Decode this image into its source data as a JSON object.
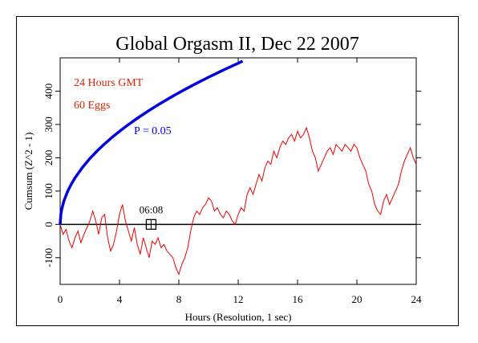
{
  "chart_data": {
    "type": "line",
    "title": "Global Orgasm II, Dec 22 2007",
    "xlabel": "Hours (Resolution, 1 sec)",
    "ylabel": "Cumsum (Z^2 - 1)",
    "xlim": [
      0,
      24
    ],
    "ylim": [
      -180,
      500
    ],
    "x_ticks": [
      "0",
      "4",
      "8",
      "12",
      "16",
      "20",
      "24"
    ],
    "y_ticks": [
      "-100",
      "0",
      "100",
      "200",
      "300",
      "400"
    ],
    "annotations": {
      "hours_label": "24 Hours GMT",
      "eggs_label": "60 Eggs",
      "p_label": "P = 0.05",
      "marker_label": "06:08",
      "marker_x": 6.13,
      "marker_y": 0
    },
    "series": [
      {
        "color": "#ee0000",
        "x": [
          0,
          0.2,
          0.4,
          0.6,
          0.8,
          1.0,
          1.2,
          1.4,
          1.6,
          1.8,
          2.0,
          2.2,
          2.4,
          2.6,
          2.8,
          3.0,
          3.2,
          3.4,
          3.6,
          3.8,
          4.0,
          4.2,
          4.4,
          4.6,
          4.8,
          5.0,
          5.2,
          5.4,
          5.6,
          5.8,
          6.0,
          6.2,
          6.4,
          6.6,
          6.8,
          7.0,
          7.2,
          7.4,
          7.6,
          7.8,
          8.0,
          8.2,
          8.4,
          8.6,
          8.8,
          9.0,
          9.2,
          9.4,
          9.6,
          9.8,
          10.0,
          10.2,
          10.4,
          10.6,
          10.8,
          11.0,
          11.2,
          11.4,
          11.6,
          11.8,
          12.0,
          12.2,
          12.4,
          12.6,
          12.8,
          13.0,
          13.2,
          13.4,
          13.6,
          13.8,
          14.0,
          14.2,
          14.4,
          14.6,
          14.8,
          15.0,
          15.2,
          15.4,
          15.6,
          15.8,
          16.0,
          16.2,
          16.4,
          16.6,
          16.8,
          17.0,
          17.2,
          17.4,
          17.6,
          17.8,
          18.0,
          18.2,
          18.4,
          18.6,
          18.8,
          19.0,
          19.2,
          19.4,
          19.6,
          19.8,
          20.0,
          20.2,
          20.4,
          20.6,
          20.8,
          21.0,
          21.2,
          21.4,
          21.6,
          21.8,
          22.0,
          22.2,
          22.4,
          22.6,
          22.8,
          23.0,
          23.2,
          23.4,
          23.6,
          23.8,
          24.0
        ],
        "y": [
          0,
          -30,
          -15,
          -50,
          -70,
          -40,
          -20,
          -55,
          -30,
          -10,
          10,
          40,
          10,
          -30,
          20,
          30,
          -40,
          -80,
          -60,
          -20,
          30,
          60,
          10,
          -20,
          -50,
          -10,
          -60,
          -90,
          -40,
          -70,
          -100,
          -50,
          -60,
          -40,
          -70,
          -60,
          -80,
          -90,
          -100,
          -130,
          -150,
          -120,
          -100,
          -70,
          -20,
          20,
          40,
          30,
          50,
          60,
          80,
          70,
          40,
          50,
          30,
          20,
          40,
          30,
          10,
          0,
          30,
          50,
          40,
          90,
          110,
          90,
          120,
          150,
          130,
          170,
          190,
          180,
          220,
          200,
          230,
          250,
          240,
          260,
          270,
          250,
          280,
          260,
          270,
          290,
          260,
          220,
          200,
          160,
          180,
          200,
          220,
          230,
          210,
          240,
          230,
          220,
          240,
          230,
          220,
          240,
          230,
          200,
          180,
          160,
          120,
          100,
          60,
          40,
          30,
          70,
          90,
          60,
          80,
          100,
          120,
          160,
          190,
          210,
          230,
          200,
          180
        ]
      },
      {
        "name": "P = 0.05",
        "color": "#0000dd",
        "x": [
          0,
          0.05,
          0.1,
          0.25,
          0.5,
          0.75,
          1,
          1.5,
          2,
          2.5,
          3,
          3.5,
          4,
          4.5,
          5,
          5.5,
          6,
          6.5,
          7,
          7.5,
          8,
          8.5,
          9,
          9.5,
          10,
          10.5,
          11,
          11.5,
          12,
          12.3
        ],
        "y": [
          0,
          31.2,
          44.2,
          69.8,
          98.8,
          121,
          139.7,
          171,
          197.6,
          220.9,
          242,
          261.4,
          279.4,
          296.3,
          312.4,
          327.6,
          342.2,
          356.2,
          369.6,
          382.6,
          395.1,
          407.3,
          419.1,
          430.6,
          441.7,
          452.6,
          463.3,
          473.7,
          483.9,
          489.9
        ]
      }
    ]
  }
}
